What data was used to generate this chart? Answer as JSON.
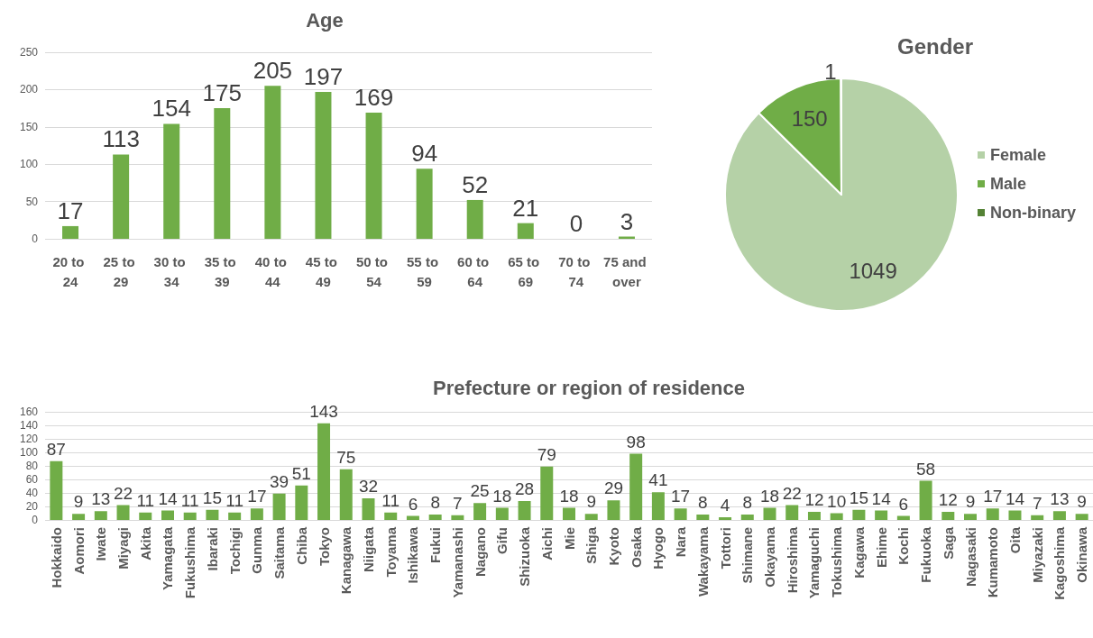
{
  "chart_data": [
    {
      "type": "bar",
      "title": "Age",
      "categories": [
        "20 to 24",
        "25 to 29",
        "30 to 34",
        "35 to 39",
        "40 to 44",
        "45 to 49",
        "50 to 54",
        "55 to 59",
        "60 to 64",
        "65 to 69",
        "70 to 74",
        "75 and over"
      ],
      "values": [
        17,
        113,
        154,
        175,
        205,
        197,
        169,
        94,
        52,
        21,
        0,
        3
      ],
      "color": "#70ad47",
      "ylim": [
        0,
        250
      ],
      "yticks": [
        0,
        50,
        100,
        150,
        200,
        250
      ],
      "grid": "y",
      "data_labels": true
    },
    {
      "type": "pie",
      "title": "Gender",
      "categories": [
        "Female",
        "Male",
        "Non-binary"
      ],
      "values": [
        1049,
        150,
        1
      ],
      "colors": [
        "#b5d1a7",
        "#70ad47",
        "#548235"
      ],
      "legend": "right",
      "data_labels": true
    },
    {
      "type": "bar",
      "title": "Prefecture or region of residence",
      "categories": [
        "Hokkaido",
        "Aomori",
        "Iwate",
        "Miyagi",
        "Akita",
        "Yamagata",
        "Fukushima",
        "Ibaraki",
        "Tochigi",
        "Gunma",
        "Saitama",
        "Chiba",
        "Tokyo",
        "Kanagawa",
        "Niigata",
        "Toyama",
        "Ishikawa",
        "Fukui",
        "Yamanashi",
        "Nagano",
        "Gifu",
        "Shizuoka",
        "Aichi",
        "Mie",
        "Shiga",
        "Kyoto",
        "Osaka",
        "Hyogo",
        "Nara",
        "Wakayama",
        "Tottori",
        "Shimane",
        "Okayama",
        "Hiroshima",
        "Yamaguchi",
        "Tokushima",
        "Kagawa",
        "Ehime",
        "Kochi",
        "Fukuoka",
        "Saga",
        "Nagasaki",
        "Kumamoto",
        "Oita",
        "Miyazaki",
        "Kagoshima",
        "Okinawa"
      ],
      "values": [
        87,
        9,
        13,
        22,
        11,
        14,
        11,
        15,
        11,
        17,
        39,
        51,
        143,
        75,
        32,
        11,
        6,
        8,
        7,
        25,
        18,
        28,
        79,
        18,
        9,
        29,
        98,
        41,
        17,
        8,
        4,
        8,
        18,
        22,
        12,
        10,
        15,
        14,
        6,
        58,
        12,
        9,
        17,
        14,
        7,
        13,
        9
      ],
      "color": "#70ad47",
      "ylim": [
        0,
        160
      ],
      "yticks": [
        0,
        20,
        40,
        60,
        80,
        100,
        120,
        140,
        160
      ],
      "grid": "y",
      "data_labels": true
    }
  ]
}
